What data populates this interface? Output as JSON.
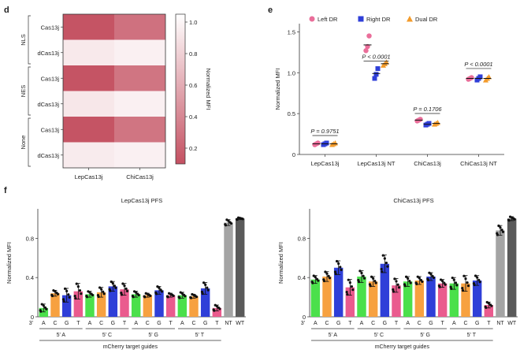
{
  "panel_labels": {
    "d": "d",
    "e": "e",
    "f": "f"
  },
  "chart_data": [
    {
      "panel": "d",
      "type": "heatmap",
      "columns": [
        "LepCas13j",
        "ChiCas13j"
      ],
      "groups": [
        "NLS",
        "NES",
        "None"
      ],
      "rows": [
        "Cas13j",
        "dCas13j",
        "Cas13j",
        "dCas13j",
        "Cas13j",
        "dCas13j"
      ],
      "values": [
        [
          0.12,
          0.28
        ],
        [
          0.93,
          0.97
        ],
        [
          0.12,
          0.3
        ],
        [
          0.92,
          0.97
        ],
        [
          0.12,
          0.3
        ],
        [
          0.94,
          0.97
        ]
      ],
      "colorbar": {
        "label": "Normalized MFI",
        "ticks": [
          "1.0",
          "0.8",
          "0.6",
          "0.4",
          "0.2"
        ],
        "range": [
          0.1,
          1.05
        ],
        "low_color": "#c45061",
        "high_color": "#ffffff"
      }
    },
    {
      "panel": "e",
      "type": "scatter",
      "ylabel": "Normalized MFI",
      "ylim": [
        0,
        1.6
      ],
      "yticks": [
        "0",
        "0.5",
        "1.0",
        "1.5"
      ],
      "categories": [
        "LepCas13j",
        "LepCas13j NT",
        "ChiCas13j",
        "ChiCas13j NT"
      ],
      "legend": [
        {
          "name": "Left DR",
          "color": "#ea6e9a",
          "marker": "circle"
        },
        {
          "name": "Right DR",
          "color": "#2f3fd8",
          "marker": "square"
        },
        {
          "name": "Dual DR",
          "color": "#f39b2b",
          "marker": "triangle"
        }
      ],
      "series": [
        {
          "name": "Left DR",
          "points": [
            [
              0.12,
              0.13,
              0.14
            ],
            [
              1.27,
              1.32,
              1.45
            ],
            [
              0.41,
              0.42,
              0.43
            ],
            [
              0.92,
              0.93,
              0.94
            ]
          ],
          "means": [
            0.13,
            1.34,
            0.42,
            0.93
          ]
        },
        {
          "name": "Right DR",
          "points": [
            [
              0.12,
              0.13,
              0.14
            ],
            [
              0.93,
              0.98,
              1.05
            ],
            [
              0.36,
              0.37,
              0.38
            ],
            [
              0.91,
              0.93,
              0.95
            ]
          ],
          "means": [
            0.13,
            0.99,
            0.37,
            0.93
          ]
        },
        {
          "name": "Dual DR",
          "points": [
            [
              0.12,
              0.13,
              0.14
            ],
            [
              1.09,
              1.11,
              1.13
            ],
            [
              0.37,
              0.38,
              0.39
            ],
            [
              0.91,
              0.93,
              0.95
            ]
          ],
          "means": [
            0.13,
            1.11,
            0.38,
            0.93
          ]
        }
      ],
      "annotations": [
        {
          "text": "P = 0.9751",
          "group": 0,
          "y": 0.26
        },
        {
          "text": "P < 0.0001",
          "group": 1,
          "y": 1.17
        },
        {
          "text": "P = 0.1706",
          "group": 2,
          "y": 0.53
        },
        {
          "text": "P < 0.0001",
          "group": 3,
          "y": 1.08
        }
      ]
    },
    {
      "panel": "f-left",
      "type": "bar",
      "title": "LepCas13j PFS",
      "ylabel": "Normalized MFI",
      "ylim": [
        0,
        1.1
      ],
      "yticks": [
        "0",
        "0.4",
        "0.8"
      ],
      "prefix": "3'",
      "tick_labels": [
        "A",
        "C",
        "G",
        "T",
        "A",
        "C",
        "G",
        "T",
        "A",
        "C",
        "G",
        "T",
        "A",
        "C",
        "G",
        "T",
        "NT",
        "WT"
      ],
      "values": [
        0.09,
        0.24,
        0.22,
        0.26,
        0.23,
        0.25,
        0.31,
        0.28,
        0.23,
        0.22,
        0.27,
        0.22,
        0.22,
        0.21,
        0.29,
        0.09,
        0.96,
        1.0
      ],
      "errors": [
        0.04,
        0.03,
        0.07,
        0.08,
        0.03,
        0.05,
        0.05,
        0.06,
        0.03,
        0.02,
        0.04,
        0.02,
        0.03,
        0.02,
        0.06,
        0.03,
        0.03,
        0.01
      ],
      "colors": [
        "#4be04b",
        "#f7a140",
        "#2f3fd8",
        "#ea5b8e",
        "#4be04b",
        "#f7a140",
        "#2f3fd8",
        "#ea5b8e",
        "#4be04b",
        "#f7a140",
        "#2f3fd8",
        "#ea5b8e",
        "#4be04b",
        "#f7a140",
        "#2f3fd8",
        "#ea5b8e",
        "#a4a4a4",
        "#5a5a5a"
      ],
      "groups": [
        "5' A",
        "5' C",
        "5' G",
        "5' T"
      ],
      "bracket_label": "mCherry target guides"
    },
    {
      "panel": "f-right",
      "type": "bar",
      "title": "ChiCas13j PFS",
      "ylabel": "Normalized MFI",
      "ylim": [
        0,
        1.1
      ],
      "yticks": [
        "0",
        "0.4",
        "0.8"
      ],
      "prefix": "3'",
      "tick_labels": [
        "A",
        "C",
        "G",
        "T",
        "A",
        "C",
        "G",
        "T",
        "A",
        "C",
        "G",
        "T",
        "A",
        "C",
        "G",
        "T",
        "NT",
        "WT"
      ],
      "values": [
        0.38,
        0.41,
        0.5,
        0.3,
        0.41,
        0.36,
        0.54,
        0.32,
        0.36,
        0.37,
        0.41,
        0.34,
        0.34,
        0.34,
        0.37,
        0.12,
        0.88,
        1.0
      ],
      "errors": [
        0.04,
        0.05,
        0.07,
        0.08,
        0.06,
        0.05,
        0.09,
        0.07,
        0.05,
        0.04,
        0.04,
        0.04,
        0.06,
        0.08,
        0.05,
        0.03,
        0.05,
        0.02
      ],
      "colors": [
        "#4be04b",
        "#f7a140",
        "#2f3fd8",
        "#ea5b8e",
        "#4be04b",
        "#f7a140",
        "#2f3fd8",
        "#ea5b8e",
        "#4be04b",
        "#f7a140",
        "#2f3fd8",
        "#ea5b8e",
        "#4be04b",
        "#f7a140",
        "#2f3fd8",
        "#ea5b8e",
        "#a4a4a4",
        "#5a5a5a"
      ],
      "groups": [
        "5' A",
        "5' C",
        "5' G",
        "5' T"
      ],
      "bracket_label": "mCherry target guides"
    }
  ]
}
